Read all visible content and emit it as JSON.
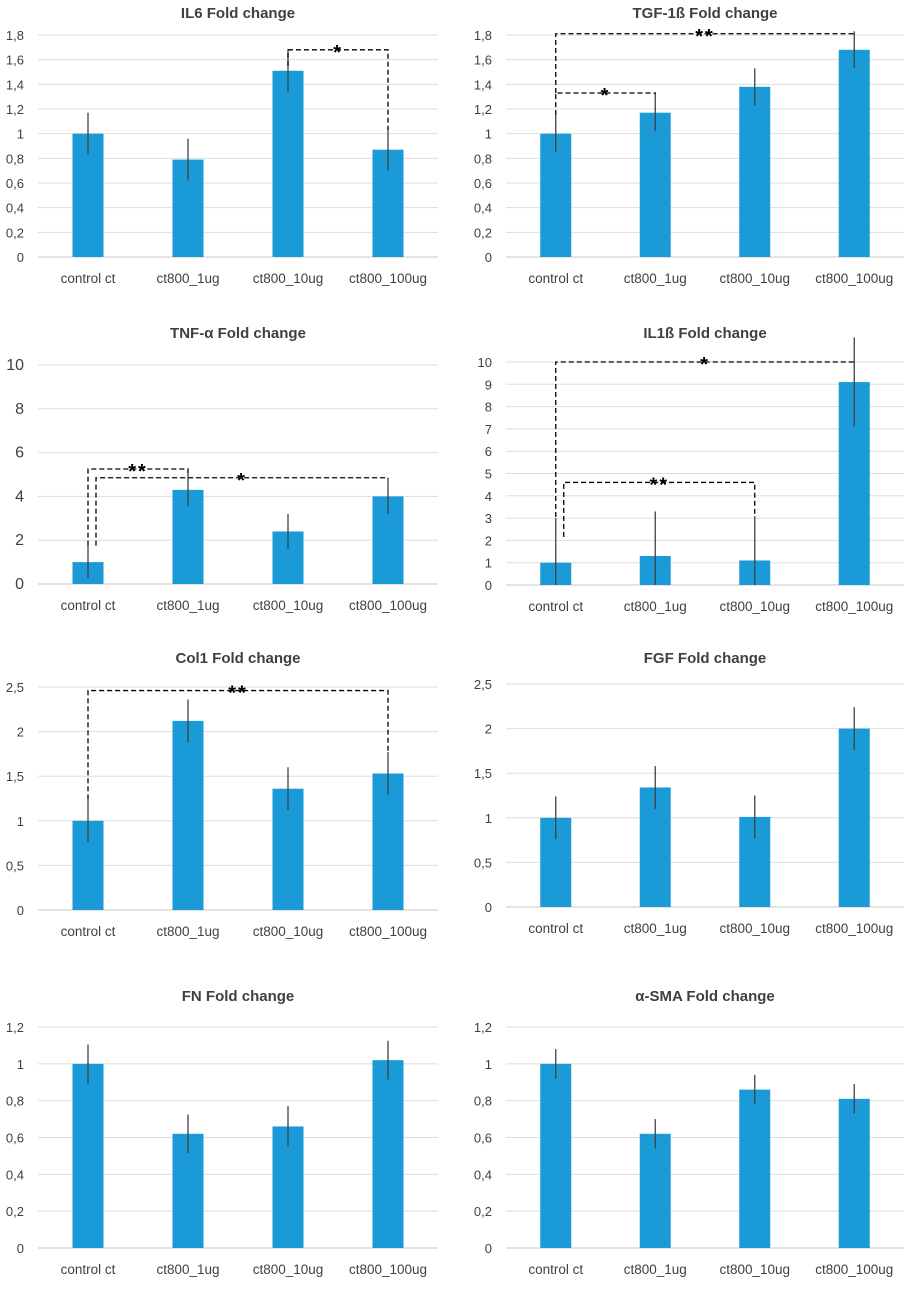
{
  "chart_data": [
    {
      "type": "bar",
      "title": "IL6 Fold change",
      "categories": [
        "control ct",
        "ct800_1ug",
        "ct800_10ug",
        "ct800_100ug"
      ],
      "values": [
        1.0,
        0.79,
        1.51,
        0.87
      ],
      "errors": [
        0.17,
        0.17,
        0.17,
        0.17
      ],
      "ylim": [
        0,
        1.8
      ],
      "yticks": [
        "0",
        "0,2",
        "0,4",
        "0,6",
        "0,8",
        "1",
        "1,2",
        "1,4",
        "1,6",
        "1,8"
      ],
      "xlabel": "",
      "ylabel": "",
      "color": "#1a9bd7",
      "annotations": [
        {
          "from": 2,
          "to": 3,
          "label": "*",
          "y": 1.68,
          "from_y": 1.55,
          "to_y": 1.03
        }
      ]
    },
    {
      "type": "bar",
      "title": "TGF-1ß Fold change",
      "categories": [
        "control ct",
        "ct800_1ug",
        "ct800_10ug",
        "ct800_100ug"
      ],
      "values": [
        1.0,
        1.17,
        1.38,
        1.68
      ],
      "errors": [
        0.15,
        0.15,
        0.15,
        0.15
      ],
      "ylim": [
        0,
        1.8
      ],
      "yticks": [
        "0",
        "0,2",
        "0,4",
        "0,6",
        "0,8",
        "1",
        "1,2",
        "1,4",
        "1,6",
        "1,8"
      ],
      "xlabel": "",
      "ylabel": "",
      "color": "#1a9bd7",
      "annotations": [
        {
          "from": 0,
          "to": 1,
          "label": "*",
          "y": 1.33,
          "from_y": 1.15,
          "to_y": 1.32
        },
        {
          "from": 0,
          "to": 3,
          "label": "**",
          "y": 1.81,
          "from_y": 1.33,
          "to_y": 1.8
        }
      ]
    },
    {
      "type": "bar",
      "title": "TNF-α Fold change",
      "categories": [
        "control ct",
        "ct800_1ug",
        "ct800_10ug",
        "ct800_100ug"
      ],
      "values": [
        1.0,
        4.3,
        2.4,
        4.0
      ],
      "errors": [
        0.75,
        0.75,
        0.8,
        0.8
      ],
      "ylim": [
        0,
        10
      ],
      "yticks": [
        "0",
        "2",
        "4",
        "6",
        "8",
        "10"
      ],
      "xlabel": "",
      "ylabel": "",
      "color": "#1a9bd7",
      "annotations": [
        {
          "from": 0,
          "to": 1,
          "label": "**",
          "y": 5.25,
          "from_y": 1.75,
          "to_y": 5.05
        },
        {
          "from": 0,
          "to": 3,
          "label": "*",
          "y": 4.85,
          "from_y": 1.75,
          "to_y": 4.8,
          "from_dx": 8
        }
      ]
    },
    {
      "type": "bar",
      "title": "IL1ß Fold change",
      "categories": [
        "control ct",
        "ct800_1ug",
        "ct800_10ug",
        "ct800_100ug"
      ],
      "values": [
        1.0,
        1.3,
        1.1,
        9.1
      ],
      "errors": [
        2.0,
        2.0,
        2.0,
        2.0
      ],
      "ylim": [
        0,
        10
      ],
      "yticks": [
        "0",
        "1",
        "2",
        "3",
        "4",
        "5",
        "6",
        "7",
        "8",
        "9",
        "10"
      ],
      "xlabel": "",
      "ylabel": "",
      "color": "#1a9bd7",
      "annotations": [
        {
          "from": 0,
          "to": 3,
          "label": "*",
          "y": 10.0,
          "from_y": 3.05,
          "to_y": 10.0
        },
        {
          "from": 0,
          "to": 2,
          "label": "**",
          "y": 4.6,
          "from_y": 2.15,
          "to_y": 3.15,
          "from_dx": 8
        }
      ]
    },
    {
      "type": "bar",
      "title": "Col1 Fold change",
      "categories": [
        "control ct",
        "ct800_1ug",
        "ct800_10ug",
        "ct800_100ug"
      ],
      "values": [
        1.0,
        2.12,
        1.36,
        1.53
      ],
      "errors": [
        0.24,
        0.24,
        0.24,
        0.24
      ],
      "ylim": [
        0,
        2.5
      ],
      "yticks": [
        "0",
        "0,5",
        "1",
        "1,5",
        "2",
        "2,5"
      ],
      "xlabel": "",
      "ylabel": "",
      "color": "#1a9bd7",
      "annotations": [
        {
          "from": 0,
          "to": 3,
          "label": "**",
          "y": 2.46,
          "from_y": 1.24,
          "to_y": 1.77
        }
      ]
    },
    {
      "type": "bar",
      "title": "FGF Fold change",
      "categories": [
        "control ct",
        "ct800_1ug",
        "ct800_10ug",
        "ct800_100ug"
      ],
      "values": [
        1.0,
        1.34,
        1.01,
        2.0
      ],
      "errors": [
        0.24,
        0.24,
        0.24,
        0.24
      ],
      "ylim": [
        0,
        2.5
      ],
      "yticks": [
        "0",
        "0,5",
        "1",
        "1,5",
        "2",
        "2,5"
      ],
      "xlabel": "",
      "ylabel": "",
      "color": "#1a9bd7",
      "annotations": []
    },
    {
      "type": "bar",
      "title": "FN Fold change",
      "categories": [
        "control ct",
        "ct800_1ug",
        "ct800_10ug",
        "ct800_100ug"
      ],
      "values": [
        1.0,
        0.62,
        0.66,
        1.02
      ],
      "errors": [
        0.105,
        0.105,
        0.11,
        0.105
      ],
      "ylim": [
        0,
        1.2
      ],
      "yticks": [
        "0",
        "0,2",
        "0,4",
        "0,6",
        "0,8",
        "1",
        "1,2"
      ],
      "xlabel": "",
      "ylabel": "",
      "color": "#1a9bd7",
      "annotations": []
    },
    {
      "type": "bar",
      "title": "α-SMA Fold change",
      "categories": [
        "control ct",
        "ct800_1ug",
        "ct800_10ug",
        "ct800_100ug"
      ],
      "values": [
        1.0,
        0.62,
        0.86,
        0.81
      ],
      "errors": [
        0.08,
        0.08,
        0.08,
        0.08
      ],
      "ylim": [
        0,
        1.2
      ],
      "yticks": [
        "0",
        "0,2",
        "0,4",
        "0,6",
        "0,8",
        "1",
        "1,2"
      ],
      "xlabel": "",
      "ylabel": "",
      "color": "#1a9bd7",
      "annotations": []
    }
  ]
}
